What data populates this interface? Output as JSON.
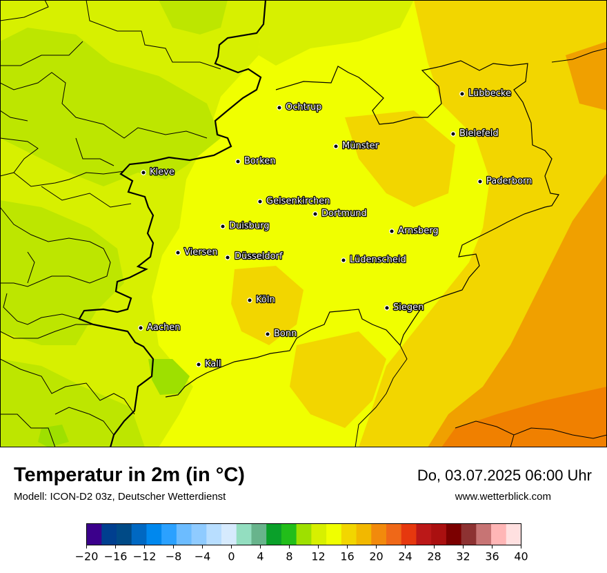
{
  "map": {
    "title": "Temperatur in 2m (in °C)",
    "subtitle": "Modell: ICON-D2 03z, Deutscher Wetterdienst",
    "datetime": "Do, 03.07.2025 06:00 Uhr",
    "website": "www.wetterblick.com",
    "cities": [
      {
        "name": "Lübbecke"
      },
      {
        "name": "Ochtrup"
      },
      {
        "name": "Bielefeld"
      },
      {
        "name": "Münster"
      },
      {
        "name": "Borken"
      },
      {
        "name": "Kleve"
      },
      {
        "name": "Paderborn"
      },
      {
        "name": "Gelsenkirchen"
      },
      {
        "name": "Dortmund"
      },
      {
        "name": "Duisburg"
      },
      {
        "name": "Arnsberg"
      },
      {
        "name": "Viersen"
      },
      {
        "name": "Düsseldorf"
      },
      {
        "name": "Lüdenscheid"
      },
      {
        "name": "Köln"
      },
      {
        "name": "Siegen"
      },
      {
        "name": "Aachen"
      },
      {
        "name": "Bonn"
      },
      {
        "name": "Kall"
      }
    ],
    "temperature_colors": {
      "cool_green": "#bde600",
      "lime": "#d7f000",
      "yellow": "#f0ff00",
      "gold": "#f2d600",
      "orange": "#f0a000",
      "dark_orange": "#f08000",
      "green_patch": "#9ee000"
    }
  },
  "legend": {
    "colors": [
      "#3b008b",
      "#003f8f",
      "#004a86",
      "#0068c2",
      "#0088ee",
      "#2ba1ff",
      "#6cbcff",
      "#8fcbff",
      "#b8deff",
      "#d6eafd",
      "#93dec0",
      "#68b48c",
      "#0aa02a",
      "#22be1a",
      "#9ee000",
      "#d7f000",
      "#f0ff00",
      "#f2d600",
      "#f2b800",
      "#f28a0c",
      "#ef6818",
      "#e6380e",
      "#bb1818",
      "#aa1010",
      "#7b0000",
      "#8d3232",
      "#c77474",
      "#ffb6b6",
      "#ffe0e0"
    ],
    "ticks": [
      "−20",
      "−16",
      "−12",
      "−8",
      "−4",
      "0",
      "4",
      "8",
      "12",
      "16",
      "20",
      "24",
      "28",
      "32",
      "36",
      "40"
    ]
  }
}
